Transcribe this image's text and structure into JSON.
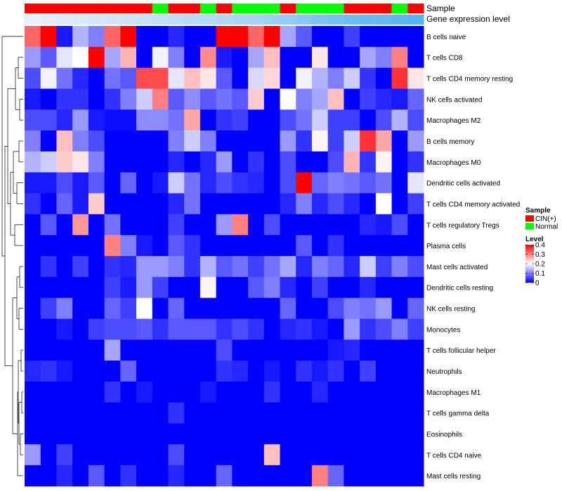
{
  "chart_data": {
    "type": "heatmap",
    "title": "",
    "annotation_rows": [
      {
        "name": "Sample",
        "values": [
          "CIN(+)",
          "CIN(+)",
          "CIN(+)",
          "CIN(+)",
          "CIN(+)",
          "CIN(+)",
          "CIN(+)",
          "CIN(+)",
          "Normal",
          "CIN(+)",
          "CIN(+)",
          "Normal",
          "CIN(+)",
          "Normal",
          "Normal",
          "Normal",
          "CIN(+)",
          "Normal",
          "Normal",
          "Normal",
          "CIN(+)",
          "CIN(+)",
          "CIN(+)",
          "Normal",
          "CIN(+)"
        ]
      },
      {
        "name": "Gene expression level",
        "values": [
          0.04,
          0.05,
          0.06,
          0.07,
          0.08,
          0.09,
          0.1,
          0.11,
          0.12,
          0.13,
          0.14,
          0.15,
          0.16,
          0.17,
          0.18,
          0.2,
          0.22,
          0.24,
          0.26,
          0.28,
          0.3,
          0.31,
          0.32,
          0.33,
          0.34
        ]
      }
    ],
    "rows": [
      "B cells naive",
      "T cells CD8",
      "T cells CD4 memory resting",
      "NK cells activated",
      "Macrophages M2",
      "B cells memory",
      "Macrophages M0",
      "Dendritic cells activated",
      "T cells CD4 memory activated",
      "T cells regulatory  Tregs",
      "Plasma cells",
      "Mast cells activated",
      "Dendritic cells resting",
      "NK cells resting",
      "Monocytes",
      "T cells follicular helper",
      "Neutrophils",
      "Macrophages M1",
      "T cells gamma delta",
      "Eosinophils",
      "T cells CD4 naive",
      "Mast cells resting"
    ],
    "columns": 25,
    "values": [
      [
        0.32,
        0.4,
        0.02,
        0.14,
        0.1,
        0.32,
        0.4,
        0.0,
        0.0,
        0.03,
        0.0,
        0.0,
        0.4,
        0.4,
        0.32,
        0.4,
        0.13,
        0.07,
        0.0,
        0.0,
        0.05,
        0.0,
        0.0,
        0.0,
        0.0
      ],
      [
        0.12,
        0.07,
        0.18,
        0.2,
        0.4,
        0.13,
        0.26,
        0.0,
        0.19,
        0.1,
        0.0,
        0.29,
        0.02,
        0.0,
        0.13,
        0.25,
        0.0,
        0.0,
        0.22,
        0.0,
        0.0,
        0.13,
        0.1,
        0.3,
        0.0
      ],
      [
        0.06,
        0.19,
        0.09,
        0.03,
        0.0,
        0.09,
        0.07,
        0.34,
        0.34,
        0.18,
        0.25,
        0.22,
        0.07,
        0.0,
        0.17,
        0.23,
        0.0,
        0.19,
        0.14,
        0.1,
        0.16,
        0.04,
        0.0,
        0.36,
        0.22
      ],
      [
        0.02,
        0.0,
        0.04,
        0.04,
        0.0,
        0.04,
        0.1,
        0.16,
        0.3,
        0.07,
        0.11,
        0.07,
        0.09,
        0.07,
        0.24,
        0.0,
        0.2,
        0.1,
        0.13,
        0.25,
        0.0,
        0.05,
        0.03,
        0.02,
        0.08
      ],
      [
        0.06,
        0.06,
        0.03,
        0.12,
        0.02,
        0.01,
        0.01,
        0.11,
        0.11,
        0.09,
        0.27,
        0.0,
        0.04,
        0.05,
        0.0,
        0.0,
        0.06,
        0.09,
        0.16,
        0.05,
        0.05,
        0.0,
        0.06,
        0.14,
        0.06
      ],
      [
        0.1,
        0.0,
        0.25,
        0.1,
        0.06,
        0.0,
        0.0,
        0.0,
        0.0,
        0.1,
        0.16,
        0.1,
        0.0,
        0.0,
        0.0,
        0.0,
        0.12,
        0.04,
        0.21,
        0.05,
        0.16,
        0.36,
        0.27,
        0.0,
        0.12
      ],
      [
        0.14,
        0.16,
        0.24,
        0.22,
        0.1,
        0.0,
        0.0,
        0.0,
        0.0,
        0.03,
        0.0,
        0.03,
        0.12,
        0.0,
        0.04,
        0.0,
        0.06,
        0.0,
        0.0,
        0.06,
        0.26,
        0.04,
        0.21,
        0.0,
        0.04
      ],
      [
        0.02,
        0.02,
        0.06,
        0.02,
        0.07,
        0.0,
        0.08,
        0.0,
        0.02,
        0.16,
        0.09,
        0.03,
        0.06,
        0.04,
        0.03,
        0.0,
        0.06,
        0.4,
        0.08,
        0.1,
        0.09,
        0.07,
        0.09,
        0.0,
        0.18
      ],
      [
        0.04,
        0.0,
        0.08,
        0.02,
        0.24,
        0.0,
        0.0,
        0.0,
        0.0,
        0.03,
        0.09,
        0.0,
        0.0,
        0.0,
        0.0,
        0.0,
        0.03,
        0.1,
        0.03,
        0.06,
        0.03,
        0.0,
        0.2,
        0.0,
        0.05
      ],
      [
        0.0,
        0.07,
        0.0,
        0.28,
        0.0,
        0.09,
        0.0,
        0.0,
        0.0,
        0.05,
        0.0,
        0.0,
        0.12,
        0.3,
        0.0,
        0.06,
        0.0,
        0.0,
        0.0,
        0.0,
        0.0,
        0.03,
        0.02,
        0.06,
        0.0
      ],
      [
        0.0,
        0.0,
        0.0,
        0.0,
        0.0,
        0.3,
        0.1,
        0.02,
        0.0,
        0.07,
        0.04,
        0.0,
        0.0,
        0.0,
        0.0,
        0.0,
        0.0,
        0.07,
        0.0,
        0.04,
        0.0,
        0.0,
        0.0,
        0.0,
        0.0
      ],
      [
        0.0,
        0.04,
        0.0,
        0.05,
        0.0,
        0.04,
        0.03,
        0.12,
        0.12,
        0.1,
        0.04,
        0.14,
        0.07,
        0.09,
        0.05,
        0.09,
        0.13,
        0.03,
        0.1,
        0.08,
        0.03,
        0.16,
        0.05,
        0.1,
        0.06
      ],
      [
        0.0,
        0.0,
        0.0,
        0.0,
        0.0,
        0.05,
        0.02,
        0.12,
        0.05,
        0.0,
        0.0,
        0.21,
        0.0,
        0.0,
        0.07,
        0.1,
        0.03,
        0.0,
        0.05,
        0.0,
        0.0,
        0.03,
        0.0,
        0.0,
        0.0
      ],
      [
        0.0,
        0.05,
        0.1,
        0.0,
        0.0,
        0.08,
        0.05,
        0.2,
        0.0,
        0.08,
        0.0,
        0.0,
        0.0,
        0.0,
        0.0,
        0.0,
        0.08,
        0.0,
        0.0,
        0.06,
        0.1,
        0.09,
        0.12,
        0.0,
        0.08
      ],
      [
        0.0,
        0.0,
        0.02,
        0.0,
        0.05,
        0.06,
        0.06,
        0.07,
        0.04,
        0.07,
        0.07,
        0.07,
        0.04,
        0.06,
        0.04,
        0.0,
        0.03,
        0.04,
        0.02,
        0.0,
        0.12,
        0.04,
        0.06,
        0.1,
        0.05
      ],
      [
        0.0,
        0.0,
        0.0,
        0.0,
        0.0,
        0.13,
        0.0,
        0.0,
        0.0,
        0.0,
        0.0,
        0.0,
        0.06,
        0.0,
        0.0,
        0.0,
        0.0,
        0.0,
        0.0,
        0.02,
        0.03,
        0.0,
        0.0,
        0.0,
        0.0
      ],
      [
        0.03,
        0.04,
        0.02,
        0.0,
        0.0,
        0.0,
        0.08,
        0.0,
        0.0,
        0.0,
        0.0,
        0.0,
        0.04,
        0.03,
        0.0,
        0.02,
        0.0,
        0.04,
        0.02,
        0.04,
        0.0,
        0.05,
        0.0,
        0.0,
        0.0
      ],
      [
        0.0,
        0.0,
        0.0,
        0.0,
        0.0,
        0.04,
        0.0,
        0.02,
        0.0,
        0.0,
        0.0,
        0.02,
        0.0,
        0.0,
        0.0,
        0.04,
        0.0,
        0.0,
        0.03,
        0.0,
        0.0,
        0.0,
        0.0,
        0.0,
        0.0
      ],
      [
        0.0,
        0.0,
        0.0,
        0.0,
        0.0,
        0.0,
        0.0,
        0.0,
        0.0,
        0.04,
        0.0,
        0.0,
        0.0,
        0.0,
        0.0,
        0.0,
        0.0,
        0.0,
        0.0,
        0.0,
        0.0,
        0.0,
        0.0,
        0.0,
        0.0
      ],
      [
        0.0,
        0.0,
        0.0,
        0.0,
        0.0,
        0.0,
        0.0,
        0.0,
        0.0,
        0.0,
        0.0,
        0.0,
        0.0,
        0.0,
        0.0,
        0.0,
        0.0,
        0.0,
        0.0,
        0.0,
        0.0,
        0.0,
        0.0,
        0.0,
        0.0
      ],
      [
        0.12,
        0.0,
        0.05,
        0.0,
        0.0,
        0.0,
        0.0,
        0.0,
        0.0,
        0.06,
        0.0,
        0.0,
        0.0,
        0.0,
        0.0,
        0.25,
        0.0,
        0.0,
        0.0,
        0.0,
        0.0,
        0.0,
        0.0,
        0.0,
        0.0
      ],
      [
        0.0,
        0.0,
        0.03,
        0.0,
        0.07,
        0.0,
        0.04,
        0.0,
        0.0,
        0.03,
        0.0,
        0.0,
        0.08,
        0.0,
        0.0,
        0.0,
        0.0,
        0.0,
        0.3,
        0.08,
        0.0,
        0.0,
        0.0,
        0.0,
        0.0
      ]
    ],
    "color_scale": {
      "min": 0,
      "mid": 0.2,
      "max": 0.4,
      "low": "#0000ff",
      "midColor": "#ffffff",
      "high": "#ff0000"
    },
    "legend": {
      "sample_title": "Sample",
      "sample_items": [
        {
          "label": "CIN(+)",
          "color": "#ff0000"
        },
        {
          "label": "Normal",
          "color": "#00ff00"
        }
      ],
      "level_title": "Level",
      "level_ticks": [
        "0.4",
        "0.3",
        "0.2",
        "0.1",
        "0"
      ],
      "level_tick_values": [
        0.4,
        0.3,
        0.2,
        0.1,
        0
      ]
    },
    "row_dendrogram": true,
    "legend_position": "right"
  }
}
